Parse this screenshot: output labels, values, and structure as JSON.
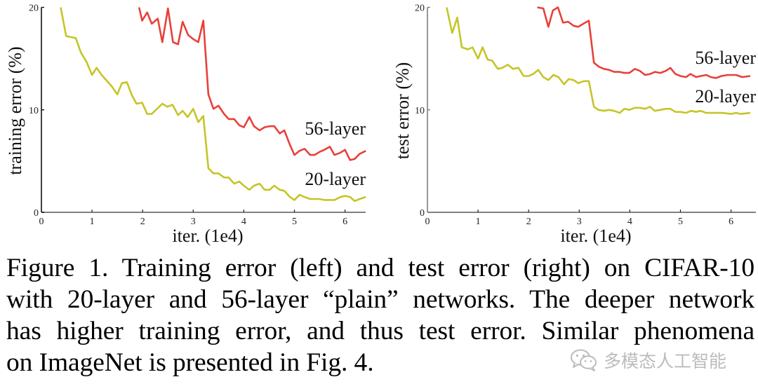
{
  "figure": {
    "caption_lines": [
      "Figure 1. Training error (left) and test error (right) on CIFAR-10",
      "with 20-layer and 56-layer “plain” networks. The deeper network",
      "has higher training error, and thus test error. Similar phenomena",
      "on ImageNet is presented in Fig. 4."
    ]
  },
  "watermark": {
    "icon": "wechat-icon",
    "text": "多模态人工智能"
  },
  "colors": {
    "layer20": "#c5c527",
    "layer56": "#e8403a",
    "axis_left": "#111111",
    "axis_right": "#7f7f7f",
    "xaxis": "#808080"
  },
  "chart_data": [
    {
      "type": "line",
      "title": "",
      "xlabel": "iter. (1e4)",
      "ylabel": "training error (%)",
      "xlim": [
        0,
        6.45
      ],
      "ylim": [
        0,
        20
      ],
      "xticks": [
        0,
        1,
        2,
        3,
        4,
        5,
        6
      ],
      "yticks": [
        0,
        10,
        20
      ],
      "grid": false,
      "legend": "inline labels at right end of lines",
      "series": [
        {
          "name": "56-layer",
          "color": "#e8403a",
          "label_pos": [
            5.55,
            7.6
          ],
          "x": [
            1.93,
            1.99,
            2.09,
            2.18,
            2.3,
            2.39,
            2.5,
            2.6,
            2.7,
            2.79,
            2.9,
            3.0,
            3.1,
            3.2,
            3.3,
            3.4,
            3.5,
            3.61,
            3.7,
            3.81,
            3.91,
            4.0,
            4.11,
            4.2,
            4.31,
            4.41,
            4.51,
            4.6,
            4.71,
            4.8,
            4.91,
            5.0,
            5.1,
            5.2,
            5.31,
            5.4,
            5.5,
            5.59,
            5.7,
            5.79,
            5.9,
            6.0,
            6.1,
            6.19,
            6.29,
            6.41
          ],
          "y": [
            20.0,
            18.7,
            19.5,
            18.4,
            18.9,
            16.6,
            19.9,
            16.6,
            16.4,
            18.6,
            17.3,
            16.9,
            16.6,
            18.7,
            11.5,
            10.1,
            10.4,
            9.6,
            9.1,
            9.1,
            8.5,
            8.3,
            9.3,
            8.4,
            8.0,
            8.3,
            8.4,
            8.4,
            7.7,
            8.0,
            6.6,
            5.6,
            6.0,
            6.2,
            5.6,
            5.6,
            5.9,
            6.1,
            6.4,
            5.6,
            5.8,
            6.1,
            5.1,
            5.2,
            5.7,
            6.0
          ]
        },
        {
          "name": "20-layer",
          "color": "#c5c527",
          "label_pos": [
            5.55,
            2.65
          ],
          "x": [
            0.38,
            0.49,
            0.68,
            0.78,
            0.89,
            1.0,
            1.09,
            1.19,
            1.39,
            1.5,
            1.59,
            1.69,
            1.79,
            1.88,
            1.99,
            2.09,
            2.18,
            2.39,
            2.49,
            2.59,
            2.7,
            2.79,
            2.89,
            3.0,
            3.1,
            3.2,
            3.3,
            3.4,
            3.5,
            3.61,
            3.7,
            3.81,
            3.91,
            4.0,
            4.11,
            4.2,
            4.31,
            4.41,
            4.51,
            4.6,
            4.71,
            4.8,
            4.91,
            5.0,
            5.1,
            5.2,
            5.31,
            5.5,
            5.59,
            5.79,
            5.91,
            6.0,
            6.1,
            6.19,
            6.29,
            6.41
          ],
          "y": [
            20.0,
            17.2,
            17.0,
            15.6,
            14.7,
            13.4,
            14.1,
            13.4,
            12.3,
            11.5,
            12.6,
            12.7,
            11.4,
            10.6,
            10.7,
            9.6,
            9.6,
            10.6,
            10.3,
            10.5,
            9.5,
            9.9,
            9.3,
            10.1,
            8.8,
            9.4,
            4.3,
            3.8,
            3.8,
            3.4,
            3.4,
            2.8,
            3.0,
            2.6,
            2.2,
            2.6,
            2.8,
            2.2,
            2.2,
            2.6,
            2.2,
            2.1,
            1.5,
            1.2,
            1.7,
            1.5,
            1.3,
            1.3,
            1.2,
            1.2,
            1.5,
            1.6,
            1.5,
            1.1,
            1.3,
            1.5
          ]
        }
      ]
    },
    {
      "type": "line",
      "title": "",
      "xlabel": "iter. (1e4)",
      "ylabel": "test error (%)",
      "xlim": [
        0,
        6.45
      ],
      "ylim": [
        0,
        20
      ],
      "xticks": [
        0,
        1,
        2,
        3,
        4,
        5,
        6
      ],
      "yticks": [
        0,
        10,
        20
      ],
      "grid": false,
      "legend": "inline labels at right end of lines",
      "series": [
        {
          "name": "56-layer",
          "color": "#e8403a",
          "label_pos": [
            5.55,
            14.5
          ],
          "x": [
            2.17,
            2.29,
            2.39,
            2.48,
            2.58,
            2.68,
            2.78,
            2.89,
            2.98,
            3.08,
            3.19,
            3.29,
            3.39,
            3.49,
            3.59,
            3.69,
            3.8,
            3.89,
            3.99,
            4.1,
            4.2,
            4.3,
            4.4,
            4.5,
            4.6,
            4.71,
            4.8,
            4.9,
            5.0,
            5.11,
            5.2,
            5.31,
            5.4,
            5.51,
            5.6,
            5.7,
            5.81,
            5.93,
            6.1,
            6.22,
            6.38
          ],
          "y": [
            20.0,
            19.9,
            18.1,
            19.7,
            20.0,
            18.5,
            18.6,
            18.2,
            18.1,
            18.4,
            18.7,
            14.6,
            14.2,
            14.0,
            13.9,
            13.7,
            13.7,
            13.6,
            13.6,
            14.0,
            13.8,
            13.4,
            13.5,
            13.7,
            13.6,
            13.8,
            14.1,
            13.5,
            13.3,
            13.2,
            13.5,
            13.2,
            13.3,
            13.4,
            13.2,
            13.1,
            13.3,
            13.4,
            13.4,
            13.2,
            13.3
          ]
        },
        {
          "name": "20-layer",
          "color": "#c5c527",
          "label_pos": [
            5.55,
            10.75
          ],
          "x": [
            0.38,
            0.49,
            0.59,
            0.68,
            0.8,
            0.89,
            1.0,
            1.09,
            1.19,
            1.28,
            1.39,
            1.48,
            1.59,
            1.69,
            1.8,
            1.9,
            2.0,
            2.09,
            2.19,
            2.29,
            2.39,
            2.49,
            2.59,
            2.7,
            2.79,
            2.89,
            2.98,
            3.09,
            3.19,
            3.29,
            3.38,
            3.49,
            3.59,
            3.69,
            3.8,
            3.89,
            3.99,
            4.1,
            4.2,
            4.3,
            4.4,
            4.49,
            4.6,
            4.71,
            4.8,
            4.9,
            5.0,
            5.11,
            5.21,
            5.31,
            5.4,
            5.51,
            5.6,
            5.71,
            5.83,
            6.0,
            6.1,
            6.19,
            6.38
          ],
          "y": [
            20.0,
            17.5,
            19.0,
            16.1,
            15.9,
            16.1,
            15.0,
            16.1,
            14.9,
            14.8,
            14.0,
            14.1,
            14.4,
            14.0,
            14.1,
            13.3,
            13.3,
            13.5,
            13.9,
            13.2,
            12.9,
            13.4,
            13.2,
            12.5,
            13.0,
            12.9,
            12.6,
            12.8,
            12.8,
            10.3,
            10.0,
            9.9,
            10.0,
            9.9,
            9.7,
            10.1,
            10.0,
            10.2,
            10.2,
            10.1,
            10.3,
            9.9,
            10.0,
            10.1,
            10.1,
            9.8,
            9.8,
            9.7,
            9.9,
            9.8,
            9.9,
            9.7,
            9.7,
            9.7,
            9.7,
            9.6,
            9.7,
            9.6,
            9.7
          ]
        }
      ]
    }
  ]
}
